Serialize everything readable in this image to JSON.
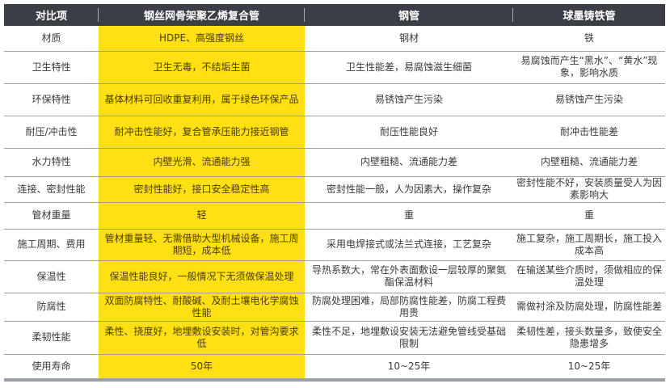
{
  "headers": [
    "对比项",
    "钢丝网骨架聚乙烯复合管",
    "钢管",
    "球墨铸铁管"
  ],
  "colors": {
    "header_bg": "#3b3f45",
    "highlight": "#ffe014",
    "divider": "#9aa0a6"
  },
  "rows": [
    [
      "材质",
      "HDPE、高强度钢丝",
      "钢材",
      "铁"
    ],
    [
      "卫生特性",
      "卫生无毒，不结垢生菌",
      "卫生性能差，易腐蚀滋生细菌",
      "易腐蚀而产生“黑水”、“黄水”现象，影响水质"
    ],
    [
      "环保特性",
      "基体材料可回收重复利用，属于绿色环保产品",
      "易锈蚀产生污染",
      "易锈蚀产生污染"
    ],
    [
      "耐压/冲击性",
      "耐冲击性能好，复合管承压能力接近钢管",
      "耐压性能良好",
      "耐冲击性能差"
    ],
    [
      "水力特性",
      "内壁光滑、流通能力强",
      "内壁粗糙、流通能力差",
      "内壁粗糙、流通能力差"
    ],
    [
      "连接、密封性能",
      "密封性能好，接口安全稳定性高",
      "密封性能一般，人为因素大，操作复杂",
      "密封性能不好，安装质量受人为因素影响大"
    ],
    [
      "管材重量",
      "轻",
      "重",
      "重"
    ],
    [
      "施工周期、费用",
      "管材重量轻、无需借助大型机械设备，施工周期短，成本低",
      "采用电焊接式或法兰式连接，工艺复杂",
      "施工复杂，施工周期长，施工投入成本高"
    ],
    [
      "保温性",
      "保温性能良好，一般情况下无须做保温处理",
      "导热系数大，常在外表面敷设一层较厚的聚氨酯保温材料",
      "在输送某些介质时，须做相应的保温处理"
    ],
    [
      "防腐性",
      "双面防腐特性、耐酸碱、及耐土壤电化学腐蚀性能",
      "防腐处理困难，局部防腐性能差，防腐工程费用贵",
      "需做衬涂及防腐处理，防腐性能差"
    ],
    [
      "柔韧性能",
      "柔性、挠度好，地埋敷设安装时，对管沟要求低",
      "柔性不足，地埋敷设安装无法避免管线受基础限制",
      "柔韧性差，接头数量多，致使安全隐患增多"
    ],
    [
      "使用寿命",
      "50年",
      "10~25年",
      "10~25年"
    ]
  ]
}
